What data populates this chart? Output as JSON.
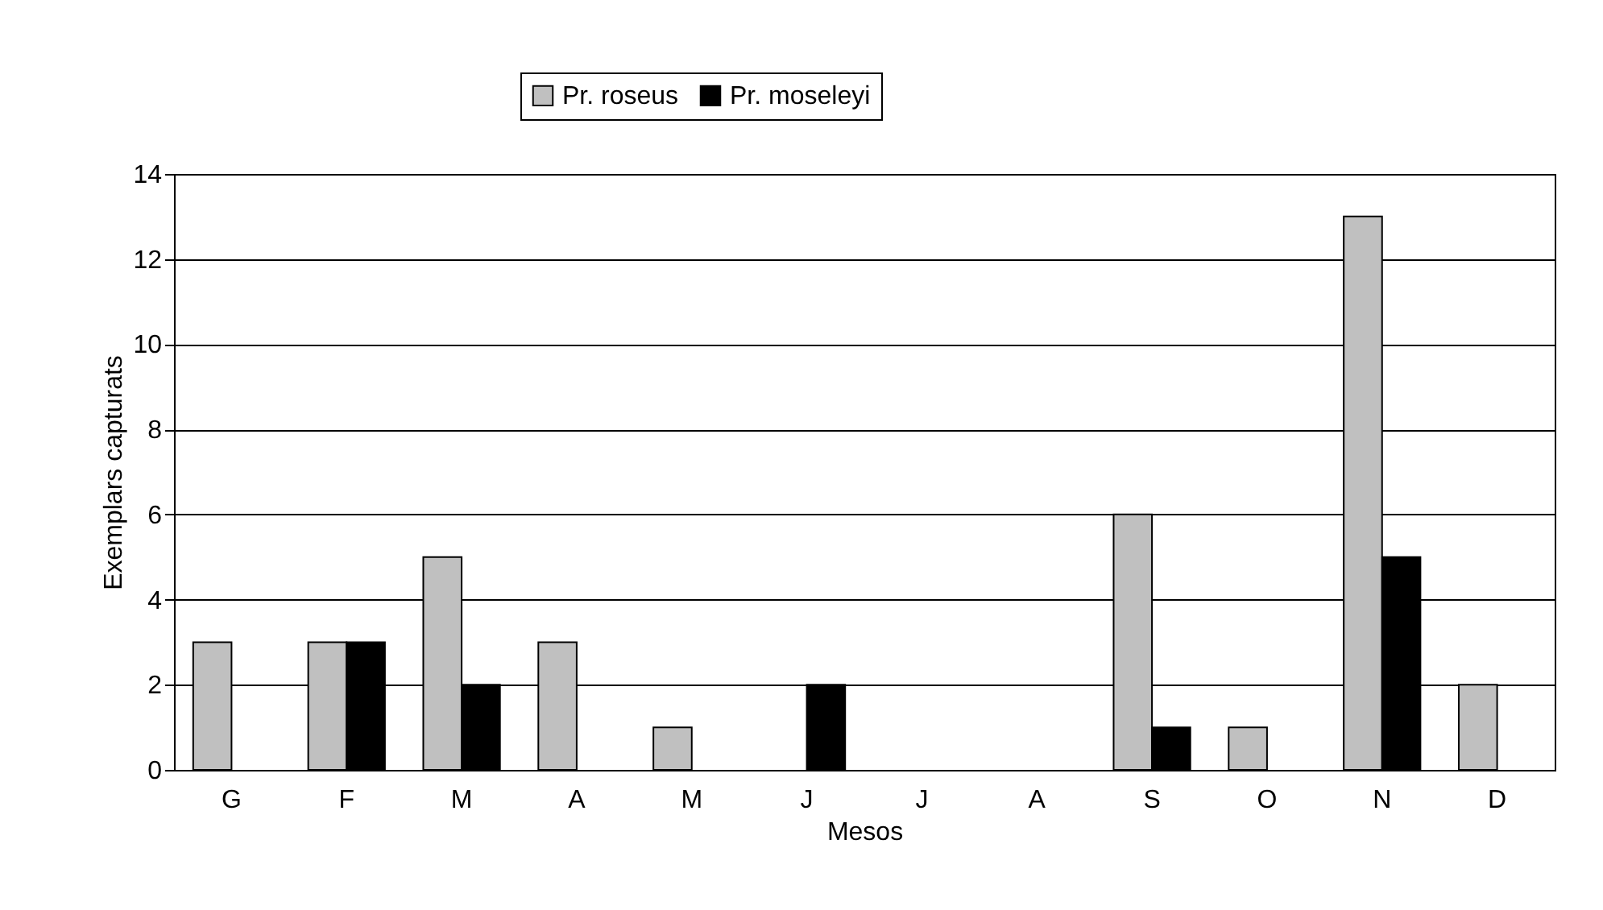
{
  "chart_data": {
    "type": "bar",
    "xlabel": "Mesos",
    "ylabel": "Exemplars capturats",
    "categories": [
      "G",
      "F",
      "M",
      "A",
      "M",
      "J",
      "J",
      "A",
      "S",
      "O",
      "N",
      "D"
    ],
    "series": [
      {
        "name": "Pr. roseus",
        "color": "#c0c0c0",
        "values": [
          3,
          3,
          5,
          3,
          1,
          0,
          0,
          0,
          6,
          1,
          13,
          2
        ]
      },
      {
        "name": "Pr. moseleyi",
        "color": "#000000",
        "values": [
          0,
          3,
          2,
          0,
          0,
          2,
          0,
          0,
          1,
          0,
          5,
          0
        ]
      }
    ],
    "ylim": [
      0,
      14
    ],
    "yticks": [
      0,
      2,
      4,
      6,
      8,
      10,
      12,
      14
    ],
    "grid": "y",
    "legend": "top"
  }
}
